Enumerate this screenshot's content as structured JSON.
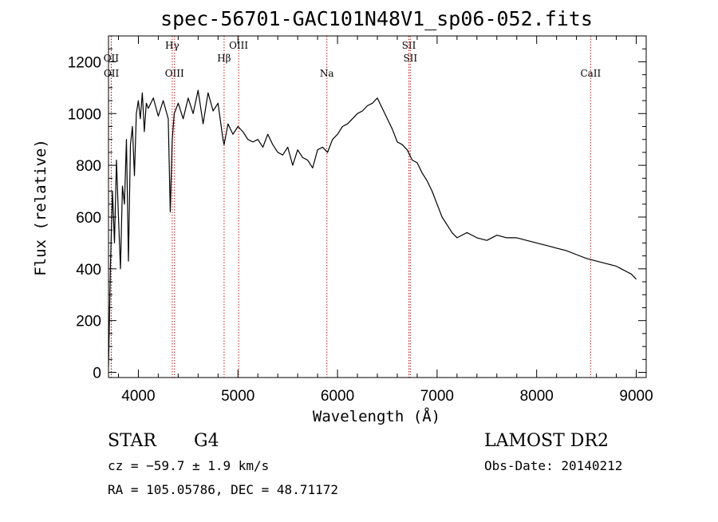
{
  "chart_data": {
    "type": "line",
    "title": "spec-56701-GAC101N48V1_sp06-052.fits",
    "xlabel": "Wavelength (Å)",
    "ylabel": "Flux (relative)",
    "xlim": [
      3700,
      9100
    ],
    "ylim": [
      -20,
      1300
    ],
    "x_ticks": [
      4000,
      5000,
      6000,
      7000,
      8000,
      9000
    ],
    "y_ticks": [
      0,
      200,
      400,
      600,
      800,
      1000,
      1200
    ],
    "grid": false,
    "series": [
      {
        "x": [
          3700,
          3720,
          3740,
          3760,
          3780,
          3800,
          3820,
          3840,
          3860,
          3880,
          3900,
          3920,
          3940,
          3960,
          3980,
          4000,
          4020,
          4040,
          4060,
          4080,
          4100,
          4150,
          4200,
          4250,
          4300,
          4320,
          4340,
          4360,
          4400,
          4450,
          4500,
          4550,
          4600,
          4650,
          4700,
          4750,
          4800,
          4850,
          4861,
          4900,
          4950,
          5000,
          5050,
          5100,
          5150,
          5200,
          5250,
          5300,
          5350,
          5400,
          5450,
          5500,
          5550,
          5600,
          5650,
          5700,
          5750,
          5800,
          5850,
          5900,
          5950,
          6000,
          6050,
          6100,
          6150,
          6200,
          6250,
          6300,
          6350,
          6400,
          6450,
          6500,
          6550,
          6600,
          6650,
          6700,
          6750,
          6800,
          6850,
          6900,
          6950,
          7000,
          7050,
          7100,
          7150,
          7200,
          7300,
          7400,
          7500,
          7600,
          7700,
          7800,
          7900,
          8000,
          8100,
          8200,
          8300,
          8400,
          8500,
          8600,
          8700,
          8800,
          8850,
          8900,
          8950,
          9000
        ],
        "y": [
          20,
          420,
          700,
          500,
          820,
          600,
          400,
          720,
          650,
          900,
          430,
          880,
          950,
          760,
          1000,
          1050,
          980,
          1080,
          930,
          1040,
          1020,
          1060,
          990,
          1050,
          980,
          620,
          900,
          1000,
          1040,
          980,
          1060,
          1000,
          1090,
          960,
          1080,
          1010,
          1040,
          900,
          880,
          960,
          920,
          950,
          930,
          900,
          890,
          900,
          870,
          920,
          880,
          850,
          840,
          870,
          800,
          860,
          830,
          820,
          790,
          860,
          870,
          850,
          900,
          920,
          950,
          960,
          980,
          1000,
          1010,
          1030,
          1040,
          1060,
          1020,
          980,
          940,
          890,
          880,
          860,
          820,
          810,
          770,
          740,
          700,
          650,
          600,
          570,
          540,
          520,
          540,
          520,
          510,
          530,
          520,
          520,
          510,
          500,
          490,
          480,
          470,
          455,
          440,
          430,
          420,
          410,
          400,
          390,
          380,
          360
        ]
      }
    ],
    "line_markers": [
      {
        "name": "OII",
        "x": 3727,
        "row": 1
      },
      {
        "name": "OII",
        "x": 3729,
        "row": 2
      },
      {
        "name": "Hγ",
        "x": 4340,
        "row": 0
      },
      {
        "name": "OIII",
        "x": 4363,
        "row": 2
      },
      {
        "name": "Hβ",
        "x": 4861,
        "row": 1
      },
      {
        "name": "OIII",
        "x": 5007,
        "row": 0
      },
      {
        "name": "Na",
        "x": 5893,
        "row": 2
      },
      {
        "name": "SII",
        "x": 6717,
        "row": 0
      },
      {
        "name": "SII",
        "x": 6731,
        "row": 1
      },
      {
        "name": "CaII",
        "x": 8542,
        "row": 2
      }
    ]
  },
  "info": {
    "object_class": "STAR",
    "subclass": "G4",
    "survey": "LAMOST DR2",
    "cz": "cz = −59.7 ± 1.9 km/s",
    "obs_date": "Obs-Date: 20140212",
    "coords": "RA = 105.05786, DEC =  48.71172"
  },
  "colors": {
    "spectrum": "#000000",
    "marker": "#b22222",
    "axis": "#000000"
  }
}
